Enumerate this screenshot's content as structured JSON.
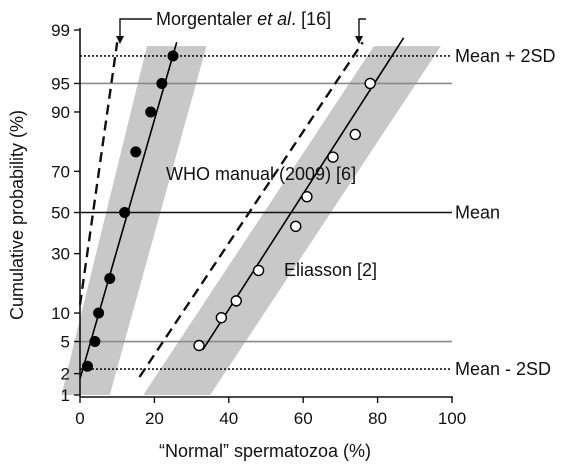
{
  "chart_data": {
    "type": "scatter",
    "y_scale": "normal-probability",
    "xlabel": "“Normal” spermatozoa (%)",
    "ylabel": "Cumulative probability (%)",
    "xlim": [
      0,
      100
    ],
    "ylim": [
      1,
      99
    ],
    "x_ticks": [
      0,
      20,
      40,
      60,
      80,
      100
    ],
    "y_ticks": [
      1,
      2,
      5,
      10,
      30,
      50,
      70,
      90,
      95,
      99
    ],
    "grid": false,
    "colors": {
      "band": "#c8c8c8",
      "black_points": "#000000",
      "white_points": "#ffffff",
      "lines": "#000000"
    },
    "series": [
      {
        "marker": "filled-circle",
        "points": [
          {
            "x": 2,
            "y": 2.5
          },
          {
            "x": 4,
            "y": 5
          },
          {
            "x": 5,
            "y": 10
          },
          {
            "x": 8,
            "y": 20
          },
          {
            "x": 12,
            "y": 50
          },
          {
            "x": 15,
            "y": 78
          },
          {
            "x": 19,
            "y": 90
          },
          {
            "x": 22,
            "y": 95
          },
          {
            "x": 25,
            "y": 97.7
          }
        ],
        "fit_line": [
          {
            "x": 0,
            "y": 1.7
          },
          {
            "x": 26,
            "y": 98.5
          }
        ],
        "band_bottom": [
          {
            "x": -5,
            "y": 1
          },
          {
            "x": 8,
            "y": 1
          }
        ],
        "band_top": [
          {
            "x": 18,
            "y": 98.3
          },
          {
            "x": 34,
            "y": 98.3
          }
        ]
      },
      {
        "name": "Eliasson [2]",
        "marker": "open-circle",
        "points": [
          {
            "x": 32,
            "y": 4.5
          },
          {
            "x": 38,
            "y": 9
          },
          {
            "x": 42,
            "y": 13
          },
          {
            "x": 48,
            "y": 23
          },
          {
            "x": 58,
            "y": 43
          },
          {
            "x": 61,
            "y": 58
          },
          {
            "x": 68,
            "y": 76
          },
          {
            "x": 74,
            "y": 84
          },
          {
            "x": 78,
            "y": 95
          }
        ],
        "fit_line": [
          {
            "x": 33,
            "y": 4
          },
          {
            "x": 87,
            "y": 98.7
          }
        ],
        "band_bottom": [
          {
            "x": 17,
            "y": 1
          },
          {
            "x": 35,
            "y": 1
          }
        ],
        "band_top": [
          {
            "x": 79,
            "y": 98.3
          },
          {
            "x": 97,
            "y": 98.3
          }
        ]
      }
    ],
    "dashed_lines": [
      {
        "from": {
          "x": 0,
          "y": 12
        },
        "to": {
          "x": 10,
          "y": 98.5
        }
      },
      {
        "from": {
          "x": 16,
          "y": 1.8
        },
        "to": {
          "x": 76,
          "y": 98.5
        }
      }
    ],
    "reference_lines": [
      {
        "y": 97.7,
        "label": "Mean + 2SD",
        "style": "dotted"
      },
      {
        "y": 95,
        "label": "",
        "style": "gray"
      },
      {
        "y": 50,
        "label": "Mean",
        "style": "solid"
      },
      {
        "y": 5,
        "label": "",
        "style": "gray"
      },
      {
        "y": 2.3,
        "label": "Mean - 2SD",
        "style": "dotted"
      }
    ],
    "annotations": [
      {
        "text": "Morgentaler",
        "italic_suffix": "et al",
        "suffix": ". [16]"
      },
      {
        "text": "WHO manual (2009) [6]"
      }
    ]
  }
}
